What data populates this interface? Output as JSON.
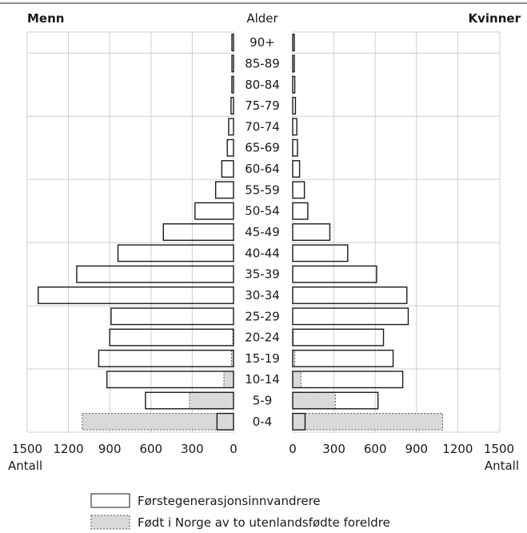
{
  "chart_data": {
    "type": "bar",
    "layout": "population-pyramid",
    "left_title": "Menn",
    "right_title": "Kvinner",
    "center_title": "Alder",
    "axis_label_left": "Antall",
    "axis_label_right": "Antall",
    "xlim": [
      0,
      1500
    ],
    "x_ticks_left": [
      "1500",
      "1200",
      "900",
      "600",
      "300",
      "0"
    ],
    "x_ticks_right": [
      "0",
      "300",
      "600",
      "900",
      "1200",
      "1500"
    ],
    "categories": [
      "0-4",
      "5-9",
      "10-14",
      "15-19",
      "20-24",
      "25-29",
      "30-34",
      "35-39",
      "40-44",
      "45-49",
      "50-54",
      "55-59",
      "60-64",
      "65-69",
      "70-74",
      "75-79",
      "80-84",
      "85-89",
      "90+"
    ],
    "series": [
      {
        "name": "Førstegenerasjonsinnvandrere",
        "key": "first",
        "color": "#ffffff",
        "men": [
          120,
          640,
          920,
          980,
          900,
          890,
          1420,
          1140,
          840,
          510,
          280,
          130,
          85,
          45,
          35,
          18,
          12,
          8,
          5
        ],
        "women": [
          90,
          620,
          800,
          730,
          660,
          840,
          830,
          610,
          400,
          270,
          110,
          85,
          50,
          35,
          30,
          20,
          15,
          10,
          8
        ]
      },
      {
        "name": "Født i Norge av to utenlandsfødte foreldre",
        "key": "born",
        "color": "#d9d9d9",
        "men": [
          1100,
          320,
          70,
          15,
          5,
          0,
          0,
          0,
          0,
          0,
          0,
          0,
          0,
          0,
          0,
          0,
          0,
          0,
          0
        ],
        "women": [
          1090,
          310,
          60,
          15,
          5,
          0,
          0,
          0,
          0,
          0,
          0,
          0,
          0,
          0,
          0,
          0,
          0,
          0,
          0
        ]
      }
    ],
    "grid": true,
    "legend_position": "bottom"
  }
}
